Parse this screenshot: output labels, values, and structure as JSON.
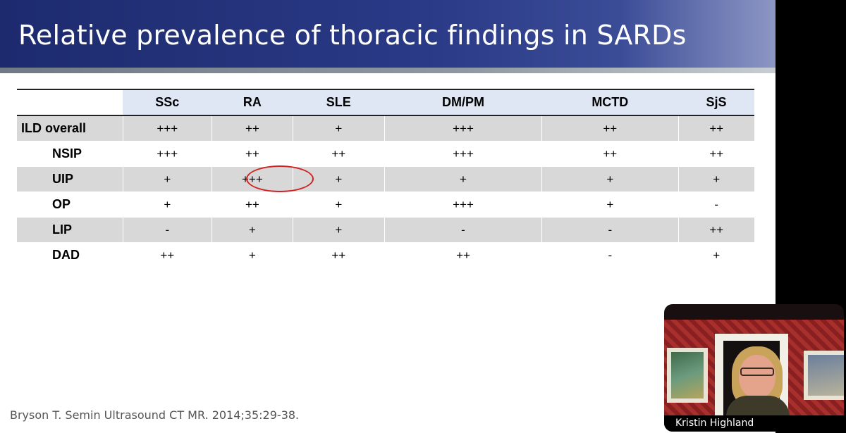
{
  "slide": {
    "title": "Relative prevalence of thoracic findings in SARDs",
    "citation": "Bryson T. Semin Ultrasound CT MR. 2014;35:29-38."
  },
  "table": {
    "columns": [
      "SSc",
      "RA",
      "SLE",
      "DM/PM",
      "MCTD",
      "SjS"
    ],
    "rows": [
      {
        "label": "ILD overall",
        "values": [
          "+++",
          "++",
          "+",
          "+++",
          "++",
          "++"
        ]
      },
      {
        "label": "NSIP",
        "values": [
          "+++",
          "++",
          "++",
          "+++",
          "++",
          "++"
        ]
      },
      {
        "label": "UIP",
        "values": [
          "+",
          "+++",
          "+",
          "+",
          "+",
          "+"
        ]
      },
      {
        "label": "OP",
        "values": [
          "+",
          "++",
          "+",
          "+++",
          "+",
          "-"
        ]
      },
      {
        "label": "LIP",
        "values": [
          "-",
          "+",
          "+",
          "-",
          "-",
          "++"
        ]
      },
      {
        "label": "DAD",
        "values": [
          "++",
          "+",
          "++",
          "++",
          "-",
          "+"
        ]
      }
    ],
    "highlight": {
      "row": "UIP",
      "column": "RA",
      "color": "#d32020"
    }
  },
  "video": {
    "participant_name": "Kristin Highland"
  },
  "colors": {
    "title_bar": "#2a3a86",
    "header_fill": "#dfe7f4",
    "row_shade": "#d8d8d8",
    "highlight_circle": "#d32020"
  }
}
